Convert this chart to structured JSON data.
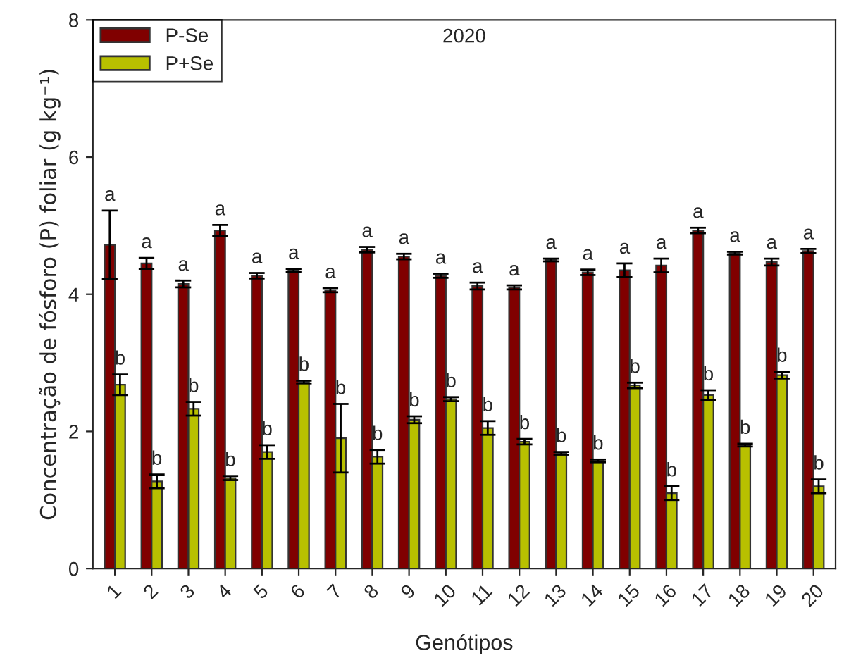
{
  "chart_data": {
    "type": "bar",
    "title": "2020",
    "xlabel": "Genótipos",
    "ylabel": "Concentração de fósforo (P) foliar (g kg⁻¹)",
    "categories": [
      "1",
      "2",
      "3",
      "4",
      "5",
      "6",
      "7",
      "8",
      "9",
      "10",
      "11",
      "12",
      "13",
      "14",
      "15",
      "16",
      "17",
      "18",
      "19",
      "20"
    ],
    "series": [
      {
        "name": "P-Se",
        "color": "#800000",
        "values": [
          4.72,
          4.45,
          4.15,
          4.93,
          4.27,
          4.35,
          4.06,
          4.65,
          4.55,
          4.27,
          4.12,
          4.1,
          4.5,
          4.32,
          4.35,
          4.42,
          4.93,
          4.6,
          4.47,
          4.63
        ],
        "errors": [
          0.5,
          0.08,
          0.05,
          0.08,
          0.04,
          0.02,
          0.03,
          0.04,
          0.04,
          0.03,
          0.05,
          0.03,
          0.02,
          0.04,
          0.1,
          0.1,
          0.04,
          0.02,
          0.05,
          0.03
        ]
      },
      {
        "name": "P+Se",
        "color": "#b8c000",
        "values": [
          2.68,
          1.27,
          2.33,
          1.32,
          1.7,
          2.72,
          1.9,
          1.63,
          2.17,
          2.47,
          2.05,
          1.85,
          1.68,
          1.57,
          2.67,
          1.1,
          2.53,
          1.8,
          2.82,
          1.2
        ],
        "errors": [
          0.15,
          0.1,
          0.1,
          0.03,
          0.1,
          0.02,
          0.5,
          0.1,
          0.05,
          0.03,
          0.1,
          0.04,
          0.02,
          0.02,
          0.04,
          0.1,
          0.07,
          0.02,
          0.05,
          0.1
        ]
      }
    ],
    "annotations": [
      {
        "text": "a",
        "x": "1",
        "y": 5.22
      },
      {
        "text": "a",
        "x": "2",
        "y": 4.53
      },
      {
        "text": "a",
        "x": "3",
        "y": 4.2
      },
      {
        "text": "a",
        "x": "4",
        "y": 5.01
      },
      {
        "text": "a",
        "x": "5",
        "y": 4.31
      },
      {
        "text": "a",
        "x": "6",
        "y": 4.37
      },
      {
        "text": "a",
        "x": "7",
        "y": 4.09
      },
      {
        "text": "a",
        "x": "8",
        "y": 4.69
      },
      {
        "text": "a",
        "x": "9",
        "y": 4.59
      },
      {
        "text": "a",
        "x": "10",
        "y": 4.3
      },
      {
        "text": "a",
        "x": "11",
        "y": 4.17
      },
      {
        "text": "a",
        "x": "12",
        "y": 4.13
      },
      {
        "text": "a",
        "x": "13",
        "y": 4.52
      },
      {
        "text": "a",
        "x": "14",
        "y": 4.36
      },
      {
        "text": "a",
        "x": "15",
        "y": 4.45
      },
      {
        "text": "a",
        "x": "16",
        "y": 4.52
      },
      {
        "text": "a",
        "x": "17",
        "y": 4.97
      },
      {
        "text": "a",
        "x": "18",
        "y": 4.62
      },
      {
        "text": "a",
        "x": "19",
        "y": 4.52
      },
      {
        "text": "a",
        "x": "20",
        "y": 4.66
      },
      {
        "text": "b",
        "x": "1",
        "y": 2.83
      },
      {
        "text": "b",
        "x": "2",
        "y": 1.37
      },
      {
        "text": "b",
        "x": "3",
        "y": 2.43
      },
      {
        "text": "b",
        "x": "4",
        "y": 1.35
      },
      {
        "text": "b",
        "x": "5",
        "y": 1.8
      },
      {
        "text": "b",
        "x": "6",
        "y": 2.74
      },
      {
        "text": "b",
        "x": "7",
        "y": 2.4
      },
      {
        "text": "b",
        "x": "8",
        "y": 1.73
      },
      {
        "text": "b",
        "x": "9",
        "y": 2.22
      },
      {
        "text": "b",
        "x": "10",
        "y": 2.5
      },
      {
        "text": "b",
        "x": "11",
        "y": 2.15
      },
      {
        "text": "b",
        "x": "12",
        "y": 1.89
      },
      {
        "text": "b",
        "x": "13",
        "y": 1.7
      },
      {
        "text": "b",
        "x": "14",
        "y": 1.59
      },
      {
        "text": "b",
        "x": "15",
        "y": 2.71
      },
      {
        "text": "b",
        "x": "16",
        "y": 1.2
      },
      {
        "text": "b",
        "x": "17",
        "y": 2.6
      },
      {
        "text": "b",
        "x": "18",
        "y": 1.82
      },
      {
        "text": "b",
        "x": "19",
        "y": 2.87
      },
      {
        "text": "b",
        "x": "20",
        "y": 1.3
      }
    ],
    "ylim": [
      0,
      8
    ],
    "yticks": [
      0,
      2,
      4,
      6,
      8
    ],
    "legend": "top left"
  }
}
